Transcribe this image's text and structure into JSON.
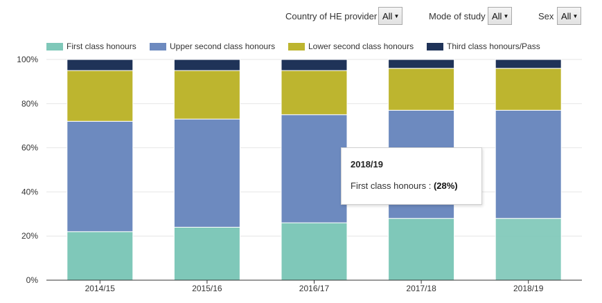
{
  "filters": [
    {
      "label": "Country of HE provider",
      "value": "All"
    },
    {
      "label": "Mode of study",
      "value": "All"
    },
    {
      "label": "Sex",
      "value": "All"
    }
  ],
  "tooltip": {
    "title": "2018/19",
    "series": "First class honours :",
    "value": "(28%)"
  },
  "chart_data": {
    "type": "bar",
    "stacked": true,
    "categories": [
      "2014/15",
      "2015/16",
      "2016/17",
      "2017/18",
      "2018/19"
    ],
    "series": [
      {
        "name": "First class honours",
        "color": "#7fc8b9",
        "values": [
          22,
          24,
          26,
          28,
          28
        ]
      },
      {
        "name": "Upper second class honours",
        "color": "#6d8abf",
        "values": [
          50,
          49,
          49,
          49,
          49
        ]
      },
      {
        "name": "Lower second class honours",
        "color": "#bdb52f",
        "values": [
          23,
          22,
          20,
          19,
          19
        ]
      },
      {
        "name": "Third class honours/Pass",
        "color": "#1f3358",
        "values": [
          5,
          5,
          5,
          4,
          4
        ]
      }
    ],
    "ylim": [
      0,
      100
    ],
    "yticks": [
      "0%",
      "20%",
      "40%",
      "60%",
      "80%",
      "100%"
    ],
    "highlighted": {
      "category": "2018/19",
      "series": "First class honours"
    },
    "legend_position": "top"
  }
}
